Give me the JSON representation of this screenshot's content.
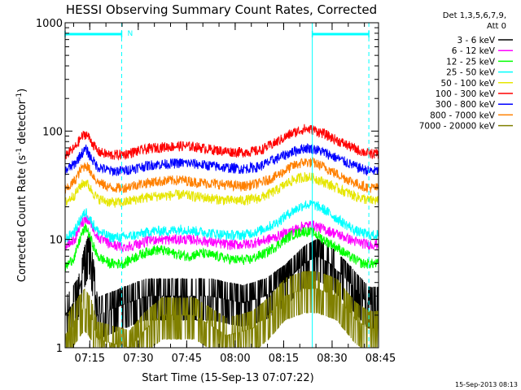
{
  "chart_data": {
    "type": "line",
    "title": "HESSI Observing Summary Count Rates, Corrected",
    "xlabel": "Start Time (15-Sep-13 07:07:22)",
    "ylabel_main": "Corrected Count Rate (s",
    "ylabel_sup1": "-1",
    "ylabel_mid": " detector",
    "ylabel_sup2": "-1",
    "ylabel_end": ")",
    "yscale": "log",
    "ylim": [
      1,
      1000
    ],
    "y_ticks": [
      "1",
      "10",
      "100",
      "1000"
    ],
    "x_range_minutes": [
      0,
      97
    ],
    "x_ticks": [
      {
        "label": "07:15",
        "min": 7.63
      },
      {
        "label": "07:30",
        "min": 22.63
      },
      {
        "label": "07:45",
        "min": 37.63
      },
      {
        "label": "08:00",
        "min": 52.63
      },
      {
        "label": "08:15",
        "min": 67.63
      },
      {
        "label": "08:30",
        "min": 82.63
      },
      {
        "label": "08:45",
        "min": 97.63
      }
    ],
    "legend_header": [
      "Det 1,3,5,6,7,9,",
      "Att 0"
    ],
    "night_flag": "N",
    "night_segments": [
      [
        0,
        17.5
      ],
      [
        76.5,
        94
      ]
    ],
    "vlines_dashed": [
      17.5,
      94
    ],
    "vlines_solid": [
      76.5
    ],
    "timestamp": "15-Sep-2013 08:13",
    "series": [
      {
        "name": "3 - 6 keV",
        "color": "#000000",
        "kind": "quant",
        "points": [
          [
            0,
            2
          ],
          [
            4,
            3
          ],
          [
            6,
            6
          ],
          [
            7.5,
            8
          ],
          [
            9,
            4
          ],
          [
            10,
            2
          ],
          [
            18,
            2.5
          ],
          [
            25,
            3
          ],
          [
            35,
            3
          ],
          [
            45,
            3
          ],
          [
            55,
            2.6
          ],
          [
            62,
            3
          ],
          [
            68,
            4
          ],
          [
            74,
            6
          ],
          [
            78,
            7
          ],
          [
            82,
            6
          ],
          [
            88,
            4
          ],
          [
            94,
            2.5
          ]
        ]
      },
      {
        "name": "6 - 12 keV",
        "color": "#ff00ff",
        "points": [
          [
            0,
            8.5
          ],
          [
            3,
            10
          ],
          [
            5,
            14
          ],
          [
            6.5,
            16
          ],
          [
            8,
            14
          ],
          [
            10,
            10.5
          ],
          [
            14,
            9
          ],
          [
            18,
            8.5
          ],
          [
            22,
            9
          ],
          [
            27,
            10
          ],
          [
            32,
            10
          ],
          [
            36,
            10
          ],
          [
            40,
            10
          ],
          [
            45,
            9.5
          ],
          [
            50,
            9
          ],
          [
            55,
            9
          ],
          [
            60,
            9.5
          ],
          [
            65,
            10.5
          ],
          [
            70,
            12
          ],
          [
            74,
            13.5
          ],
          [
            77,
            13.5
          ],
          [
            80,
            12.5
          ],
          [
            85,
            11
          ],
          [
            90,
            9.5
          ],
          [
            94,
            9
          ]
        ]
      },
      {
        "name": "12 - 25 keV",
        "color": "#00ff00",
        "points": [
          [
            0,
            5.5
          ],
          [
            3,
            7
          ],
          [
            5,
            11
          ],
          [
            6.5,
            13
          ],
          [
            8,
            10
          ],
          [
            10,
            7
          ],
          [
            14,
            6
          ],
          [
            18,
            6
          ],
          [
            22,
            7
          ],
          [
            27,
            8
          ],
          [
            30,
            8
          ],
          [
            33,
            7.5
          ],
          [
            38,
            7
          ],
          [
            42,
            7.5
          ],
          [
            47,
            7
          ],
          [
            52,
            6.5
          ],
          [
            57,
            6.5
          ],
          [
            62,
            7.5
          ],
          [
            66,
            9
          ],
          [
            70,
            11
          ],
          [
            74,
            12
          ],
          [
            77,
            11.5
          ],
          [
            80,
            10
          ],
          [
            84,
            8.5
          ],
          [
            88,
            7
          ],
          [
            92,
            6
          ],
          [
            94,
            6
          ]
        ]
      },
      {
        "name": "25 - 50 keV",
        "color": "#00ffff",
        "points": [
          [
            0,
            10
          ],
          [
            3,
            12
          ],
          [
            5,
            16
          ],
          [
            6.5,
            18
          ],
          [
            8,
            15
          ],
          [
            10,
            12
          ],
          [
            14,
            10.5
          ],
          [
            18,
            10.5
          ],
          [
            22,
            11
          ],
          [
            27,
            12
          ],
          [
            32,
            12
          ],
          [
            36,
            12.5
          ],
          [
            40,
            12
          ],
          [
            45,
            11.5
          ],
          [
            50,
            11
          ],
          [
            55,
            11
          ],
          [
            60,
            12
          ],
          [
            65,
            14
          ],
          [
            70,
            18
          ],
          [
            74,
            21
          ],
          [
            77,
            21
          ],
          [
            80,
            19
          ],
          [
            85,
            15
          ],
          [
            90,
            12
          ],
          [
            94,
            11
          ]
        ]
      },
      {
        "name": "50 - 100 keV",
        "color": "#e6e600",
        "points": [
          [
            0,
            22
          ],
          [
            3,
            26
          ],
          [
            5,
            32
          ],
          [
            6.5,
            34
          ],
          [
            8,
            29
          ],
          [
            10,
            24
          ],
          [
            14,
            22
          ],
          [
            18,
            22
          ],
          [
            22,
            23.5
          ],
          [
            27,
            25
          ],
          [
            32,
            25.5
          ],
          [
            36,
            26
          ],
          [
            40,
            25
          ],
          [
            45,
            24
          ],
          [
            50,
            23
          ],
          [
            55,
            23
          ],
          [
            60,
            24
          ],
          [
            65,
            28
          ],
          [
            70,
            35
          ],
          [
            74,
            38
          ],
          [
            77,
            37
          ],
          [
            80,
            34
          ],
          [
            85,
            29
          ],
          [
            90,
            25
          ],
          [
            94,
            23
          ]
        ]
      },
      {
        "name": "100 - 300 keV",
        "color": "#ff0000",
        "points": [
          [
            0,
            60
          ],
          [
            3,
            70
          ],
          [
            5,
            88
          ],
          [
            6.5,
            95
          ],
          [
            8,
            82
          ],
          [
            10,
            65
          ],
          [
            14,
            60
          ],
          [
            18,
            61
          ],
          [
            22,
            65
          ],
          [
            27,
            70
          ],
          [
            32,
            72
          ],
          [
            36,
            73
          ],
          [
            40,
            72
          ],
          [
            45,
            68
          ],
          [
            50,
            65
          ],
          [
            55,
            64
          ],
          [
            60,
            66
          ],
          [
            65,
            78
          ],
          [
            70,
            95
          ],
          [
            74,
            105
          ],
          [
            77,
            103
          ],
          [
            80,
            95
          ],
          [
            85,
            80
          ],
          [
            90,
            68
          ],
          [
            94,
            62
          ]
        ]
      },
      {
        "name": "300 - 800 keV",
        "color": "#0000ff",
        "points": [
          [
            0,
            43
          ],
          [
            3,
            50
          ],
          [
            5,
            62
          ],
          [
            6.5,
            68
          ],
          [
            8,
            57
          ],
          [
            10,
            47
          ],
          [
            14,
            43
          ],
          [
            18,
            43
          ],
          [
            22,
            46
          ],
          [
            27,
            49
          ],
          [
            32,
            50
          ],
          [
            36,
            51
          ],
          [
            40,
            50
          ],
          [
            45,
            48
          ],
          [
            50,
            46
          ],
          [
            55,
            45
          ],
          [
            60,
            47
          ],
          [
            65,
            55
          ],
          [
            70,
            64
          ],
          [
            74,
            70
          ],
          [
            77,
            69
          ],
          [
            80,
            64
          ],
          [
            85,
            55
          ],
          [
            90,
            47
          ],
          [
            94,
            43
          ]
        ]
      },
      {
        "name": "800 - 7000 keV",
        "color": "#ff8000",
        "points": [
          [
            0,
            28
          ],
          [
            3,
            35
          ],
          [
            5,
            45
          ],
          [
            6.5,
            49
          ],
          [
            8,
            42
          ],
          [
            10,
            34
          ],
          [
            14,
            30
          ],
          [
            18,
            30
          ],
          [
            22,
            32
          ],
          [
            27,
            34
          ],
          [
            32,
            35
          ],
          [
            36,
            35.5
          ],
          [
            40,
            34
          ],
          [
            45,
            33
          ],
          [
            50,
            32
          ],
          [
            55,
            31
          ],
          [
            60,
            33
          ],
          [
            65,
            38
          ],
          [
            70,
            47
          ],
          [
            74,
            52
          ],
          [
            77,
            51
          ],
          [
            80,
            47
          ],
          [
            85,
            39
          ],
          [
            90,
            33
          ],
          [
            94,
            30
          ]
        ]
      },
      {
        "name": "7000 - 20000 keV",
        "color": "#808000",
        "kind": "quant",
        "points": [
          [
            0,
            1.3
          ],
          [
            4,
            2
          ],
          [
            6,
            2.4
          ],
          [
            8,
            2
          ],
          [
            10,
            1.2
          ],
          [
            20,
            1
          ],
          [
            25,
            1.5
          ],
          [
            30,
            2
          ],
          [
            40,
            2
          ],
          [
            50,
            1.3
          ],
          [
            58,
            1.5
          ],
          [
            63,
            2
          ],
          [
            68,
            3
          ],
          [
            74,
            3.5
          ],
          [
            78,
            3.5
          ],
          [
            84,
            3
          ],
          [
            90,
            1.8
          ],
          [
            94,
            1.5
          ]
        ]
      }
    ]
  }
}
